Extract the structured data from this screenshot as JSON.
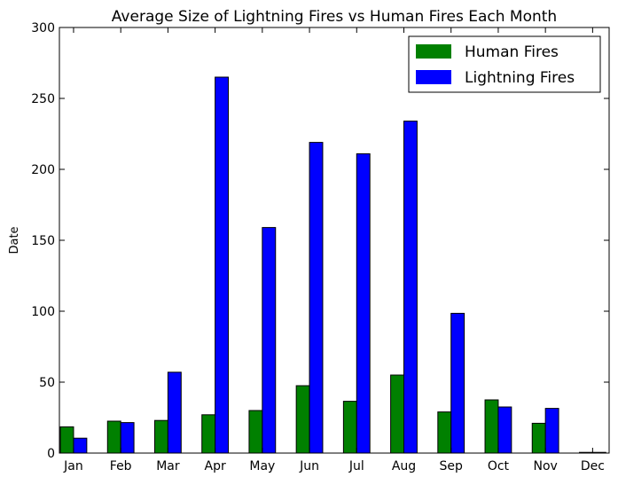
{
  "chart_data": {
    "type": "bar",
    "title": "Average Size of Lightning Fires vs Human Fires Each Month",
    "xlabel": "",
    "ylabel": "Date",
    "ylim": [
      0,
      300
    ],
    "yticks": [
      0,
      50,
      100,
      150,
      200,
      250,
      300
    ],
    "categories": [
      "Jan",
      "Feb",
      "Mar",
      "Apr",
      "May",
      "Jun",
      "Jul",
      "Aug",
      "Sep",
      "Oct",
      "Nov",
      "Dec"
    ],
    "series": [
      {
        "name": "Human Fires",
        "color": "#008000",
        "values": [
          18.5,
          22.5,
          23,
          27,
          30,
          47.5,
          36.5,
          55,
          29,
          37.5,
          21,
          0.5
        ]
      },
      {
        "name": "Lightning Fires",
        "color": "#0000ff",
        "values": [
          10.5,
          21.5,
          57,
          265,
          159,
          219,
          211,
          234,
          98.5,
          32.5,
          31.5,
          0.5
        ]
      }
    ],
    "grid": false,
    "legend_position": "top-right"
  }
}
